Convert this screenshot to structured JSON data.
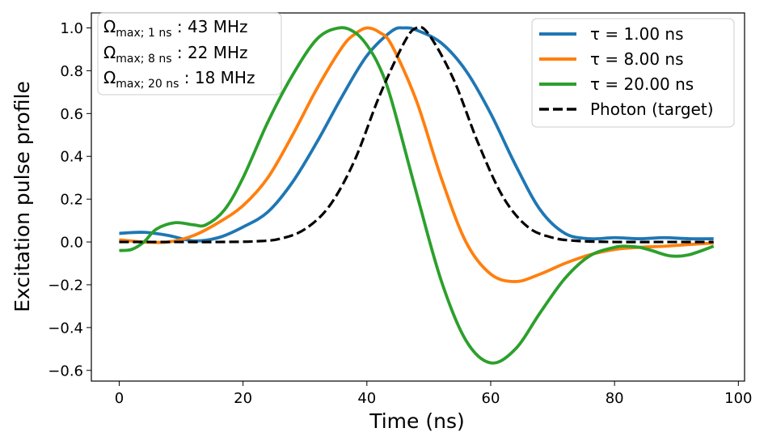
{
  "chart_data": {
    "type": "line",
    "title": "",
    "xlabel": "Time (ns)",
    "ylabel": "Excitation pulse profile",
    "xlim": [
      -4.5,
      101
    ],
    "ylim": [
      -0.65,
      1.07
    ],
    "xticks": [
      0,
      20,
      40,
      60,
      80,
      100
    ],
    "xtick_labels": [
      "0",
      "20",
      "40",
      "60",
      "80",
      "100"
    ],
    "yticks": [
      -0.6,
      -0.4,
      -0.2,
      0.0,
      0.2,
      0.4,
      0.6,
      0.8,
      1.0
    ],
    "ytick_labels": [
      "−0.6",
      "−0.4",
      "−0.2",
      "0.0",
      "0.2",
      "0.4",
      "0.6",
      "0.8",
      "1.0"
    ],
    "grid": false,
    "legend_position": "top-right",
    "annotation": {
      "position": "top-left",
      "lines": [
        {
          "symbol": "Ω",
          "subscript": "max; 1 ns",
          "text": " : 43 MHz"
        },
        {
          "symbol": "Ω",
          "subscript": "max; 8 ns",
          "text": " : 22 MHz"
        },
        {
          "symbol": "Ω",
          "subscript": "max; 20 ns",
          "text": " : 18 MHz"
        }
      ]
    },
    "series": [
      {
        "name": "τ = 1.00 ns",
        "color": "#1f77b4",
        "dash": "solid",
        "x": [
          0,
          4,
          8,
          12,
          16,
          20,
          24,
          28,
          32,
          36,
          40,
          44,
          46,
          48,
          52,
          56,
          60,
          64,
          68,
          72,
          76,
          80,
          84,
          88,
          92,
          96
        ],
        "y": [
          0.04,
          0.045,
          0.03,
          0.005,
          0.02,
          0.07,
          0.14,
          0.28,
          0.47,
          0.68,
          0.87,
          0.985,
          1.0,
          0.99,
          0.93,
          0.8,
          0.6,
          0.36,
          0.15,
          0.04,
          0.015,
          0.02,
          0.015,
          0.02,
          0.015,
          0.015
        ]
      },
      {
        "name": "τ = 8.00 ns",
        "color": "#ff7f0e",
        "dash": "solid",
        "x": [
          0,
          4,
          8,
          12,
          16,
          20,
          24,
          28,
          32,
          36,
          38,
          40,
          42,
          44,
          48,
          52,
          56,
          60,
          64,
          68,
          72,
          76,
          80,
          84,
          88,
          92,
          96
        ],
        "y": [
          0.01,
          0.0,
          0.0,
          0.03,
          0.09,
          0.17,
          0.3,
          0.5,
          0.72,
          0.91,
          0.97,
          1.0,
          0.98,
          0.92,
          0.66,
          0.3,
          0.0,
          -0.15,
          -0.185,
          -0.15,
          -0.1,
          -0.06,
          -0.035,
          -0.025,
          -0.02,
          -0.012,
          -0.005
        ]
      },
      {
        "name": "τ = 20.00 ns",
        "color": "#2ca02c",
        "dash": "solid",
        "x": [
          0,
          2,
          4,
          6,
          9,
          12,
          14,
          17,
          20,
          24,
          28,
          32,
          35.5,
          38,
          40,
          42,
          44,
          48,
          52,
          56,
          60,
          64,
          68,
          72,
          76,
          80,
          82,
          84,
          86,
          89,
          92,
          96
        ],
        "y": [
          -0.04,
          -0.035,
          0.0,
          0.06,
          0.09,
          0.08,
          0.08,
          0.15,
          0.3,
          0.56,
          0.78,
          0.95,
          1.0,
          0.98,
          0.92,
          0.82,
          0.66,
          0.23,
          -0.18,
          -0.46,
          -0.565,
          -0.5,
          -0.33,
          -0.17,
          -0.065,
          -0.025,
          -0.02,
          -0.025,
          -0.04,
          -0.065,
          -0.06,
          -0.02
        ]
      },
      {
        "name": "Photon (target)",
        "color": "#000000",
        "dash": "dashed",
        "x": [
          0,
          8,
          16,
          22,
          26,
          30,
          34,
          38,
          42,
          46,
          48,
          50,
          54,
          58,
          62,
          66,
          70,
          74,
          80,
          88,
          96
        ],
        "y": [
          0.0,
          0.0,
          0.0,
          0.003,
          0.015,
          0.06,
          0.17,
          0.38,
          0.68,
          0.93,
          1.0,
          0.97,
          0.76,
          0.46,
          0.21,
          0.07,
          0.02,
          0.005,
          0.0,
          0.0,
          0.0
        ]
      }
    ]
  }
}
